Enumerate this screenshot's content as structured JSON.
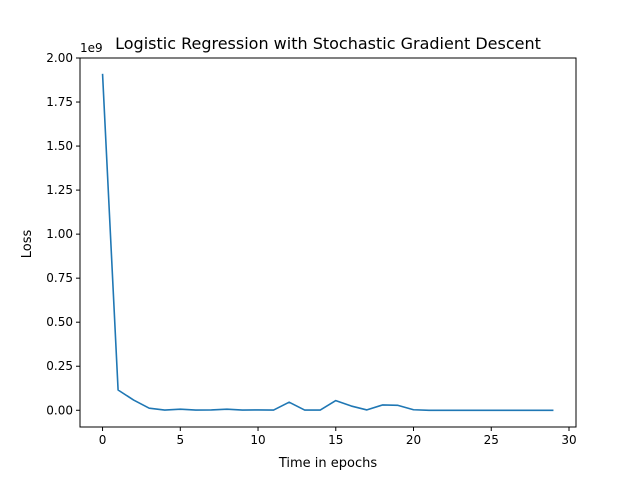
{
  "chart_data": {
    "type": "line",
    "title": "Logistic Regression with Stochastic Gradient Descent",
    "xlabel": "Time in epochs",
    "ylabel": "Loss",
    "y_offset_label": "1e9",
    "xlim": [
      -1.45,
      30.45
    ],
    "ylim": [
      -0.095,
      2.0
    ],
    "x_ticks": [
      0,
      5,
      10,
      15,
      20,
      25,
      30
    ],
    "x_tick_labels": [
      "0",
      "5",
      "10",
      "15",
      "20",
      "25",
      "30"
    ],
    "y_ticks": [
      0.0,
      0.25,
      0.5,
      0.75,
      1.0,
      1.25,
      1.5,
      1.75,
      2.0
    ],
    "y_tick_labels": [
      "0.00",
      "0.25",
      "0.50",
      "0.75",
      "1.00",
      "1.25",
      "1.50",
      "1.75",
      "2.00"
    ],
    "grid": false,
    "line_color": "#1f77b4",
    "series": [
      {
        "x": [
          0,
          1,
          2,
          3,
          4,
          5,
          6,
          7,
          8,
          9,
          10,
          11,
          12,
          13,
          14,
          15,
          16,
          17,
          18,
          19,
          20,
          21,
          22,
          23,
          24,
          25,
          26,
          27,
          28,
          29
        ],
        "values": [
          1.91,
          0.115,
          0.058,
          0.012,
          0.001,
          0.006,
          0.001,
          0.002,
          0.006,
          0.001,
          0.002,
          0.001,
          0.046,
          0.001,
          0.001,
          0.055,
          0.024,
          0.002,
          0.03,
          0.028,
          0.003,
          0.0,
          0.0,
          0.0,
          0.0,
          0.0,
          0.0,
          0.0,
          0.0,
          0.0
        ]
      }
    ]
  }
}
